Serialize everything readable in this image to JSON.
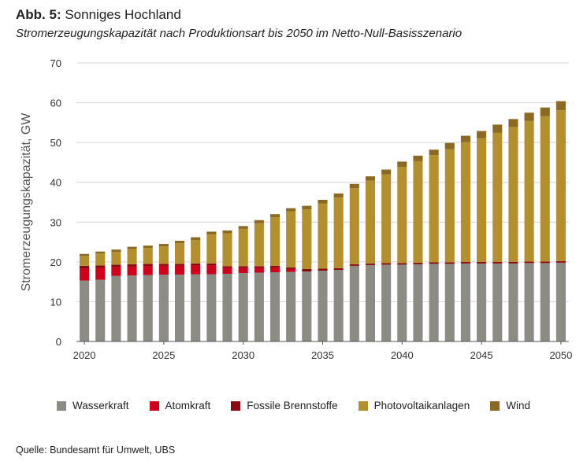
{
  "figure": {
    "label": "Abb. 5:",
    "title": "Sonniges Hochland",
    "subtitle": "Stromerzeugungskapazität nach Produktionsart bis 2050 im Netto-Null-Basisszenario",
    "source": "Quelle: Bundesamt für Umwelt, UBS"
  },
  "chart_data": {
    "type": "bar",
    "stacked": true,
    "title": "Sonniges Hochland",
    "subtitle": "Stromerzeugungskapazität nach Produktionsart bis 2050 im Netto-Null-Basisszenario",
    "xlabel": "",
    "ylabel": "Stromerzeugungskapazität, GW",
    "ylim": [
      0,
      70
    ],
    "yticks": [
      0,
      10,
      20,
      30,
      40,
      50,
      60,
      70
    ],
    "xticks": [
      "2020",
      "2025",
      "2030",
      "2035",
      "2040",
      "2045",
      "2050"
    ],
    "grid": true,
    "legend_position": "bottom",
    "categories": [
      2020,
      2021,
      2022,
      2023,
      2024,
      2025,
      2026,
      2027,
      2028,
      2029,
      2030,
      2031,
      2032,
      2033,
      2034,
      2035,
      2036,
      2037,
      2038,
      2039,
      2040,
      2041,
      2042,
      2043,
      2044,
      2045,
      2046,
      2047,
      2048,
      2049,
      2050
    ],
    "series": [
      {
        "name": "Wasserkraft",
        "color": "#8c8c84",
        "values": [
          15.3,
          15.5,
          16.5,
          16.6,
          16.7,
          16.8,
          16.8,
          16.9,
          16.9,
          17.0,
          17.2,
          17.3,
          17.4,
          17.5,
          17.6,
          17.8,
          18.0,
          19.0,
          19.2,
          19.3,
          19.3,
          19.4,
          19.5,
          19.5,
          19.6,
          19.6,
          19.6,
          19.6,
          19.7,
          19.7,
          19.8
        ]
      },
      {
        "name": "Atomkraft",
        "color": "#d0021b",
        "values": [
          3.0,
          3.0,
          2.2,
          2.2,
          2.2,
          2.2,
          2.2,
          2.2,
          2.2,
          1.5,
          1.3,
          1.2,
          1.2,
          0.7,
          0,
          0,
          0,
          0,
          0,
          0,
          0,
          0,
          0,
          0,
          0,
          0,
          0,
          0,
          0,
          0,
          0
        ]
      },
      {
        "name": "Fossile Brennstoffe",
        "color": "#8b0a0f",
        "values": [
          0.7,
          0.6,
          0.6,
          0.6,
          0.6,
          0.5,
          0.5,
          0.5,
          0.5,
          0.4,
          0.4,
          0.4,
          0.4,
          0.4,
          0.6,
          0.5,
          0.4,
          0.4,
          0.4,
          0.4,
          0.4,
          0.4,
          0.4,
          0.4,
          0.4,
          0.4,
          0.4,
          0.4,
          0.4,
          0.4,
          0.4
        ]
      },
      {
        "name": "Photovoltaikanlagen",
        "color": "#b38f2e",
        "values": [
          2.5,
          3.0,
          3.2,
          3.8,
          4.0,
          4.4,
          5.2,
          5.9,
          7.3,
          8.3,
          9.4,
          10.8,
          12.2,
          14.1,
          15.0,
          16.4,
          17.8,
          19.1,
          20.8,
          22.3,
          24.2,
          25.5,
          26.9,
          28.4,
          30.1,
          31.1,
          32.5,
          33.9,
          35.3,
          36.5,
          37.9
        ]
      },
      {
        "name": "Wind",
        "color": "#8b6923",
        "values": [
          0.5,
          0.5,
          0.6,
          0.6,
          0.6,
          0.6,
          0.6,
          0.7,
          0.7,
          0.7,
          0.7,
          0.8,
          0.8,
          0.8,
          0.9,
          0.9,
          1.0,
          1.1,
          1.1,
          1.2,
          1.3,
          1.4,
          1.4,
          1.6,
          1.6,
          1.8,
          2.0,
          2.0,
          2.1,
          2.2,
          2.3
        ]
      }
    ]
  }
}
